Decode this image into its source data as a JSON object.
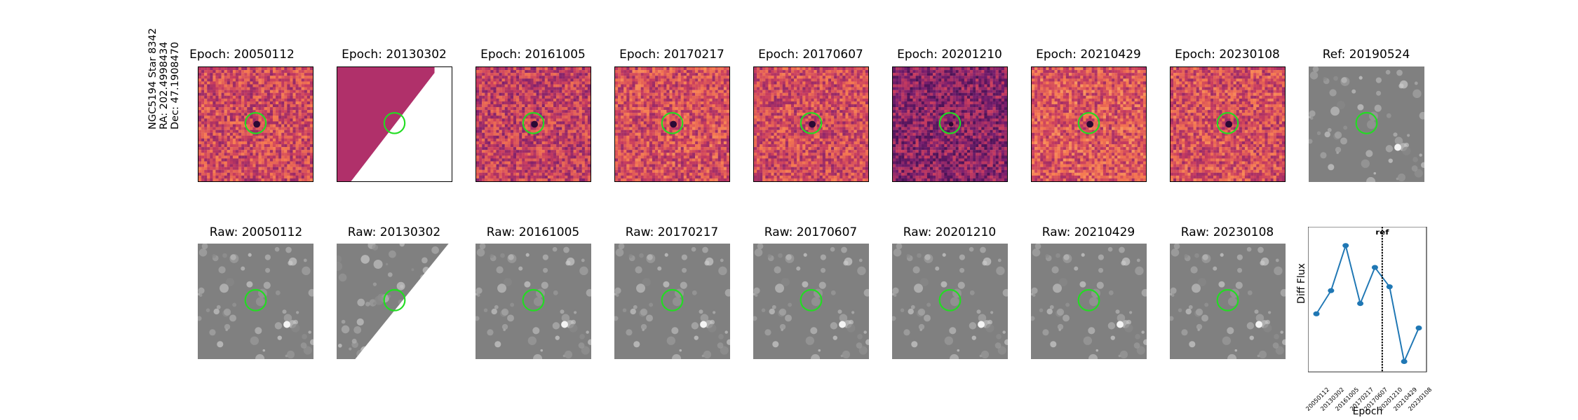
{
  "target": {
    "name": "NGC5194 Star 8342",
    "ra": "RA: 202.4998434",
    "dec": "Dec: 47.1908470"
  },
  "diff_titles": [
    "Epoch: 20050112",
    "Epoch: 20130302",
    "Epoch: 20161005",
    "Epoch: 20170217",
    "Epoch: 20170607",
    "Epoch: 20201210",
    "Epoch: 20210429",
    "Epoch: 20230108"
  ],
  "ref_title": "Ref: 20190524",
  "raw_titles": [
    "Raw: 20050112",
    "Raw: 20130302",
    "Raw: 20161005",
    "Raw: 20170217",
    "Raw: 20170607",
    "Raw: 20201210",
    "Raw: 20210429",
    "Raw: 20230108"
  ],
  "colors": {
    "circle": "#22dd22",
    "line": "#1f77b4",
    "partial_fill": "#b0306a"
  },
  "chart_data": {
    "type": "line",
    "xlabel": "Epoch",
    "ylabel": "Diff Flux",
    "categories": [
      "20050112",
      "20130302",
      "20161005",
      "20170217",
      "20170607",
      "20201210",
      "20210429",
      "20230108"
    ],
    "values": [
      0.42,
      0.6,
      0.95,
      0.5,
      0.78,
      0.63,
      0.05,
      0.31
    ],
    "ylim": [
      0,
      1
    ],
    "reference": {
      "label": "ref",
      "between": [
        4,
        5
      ]
    }
  }
}
